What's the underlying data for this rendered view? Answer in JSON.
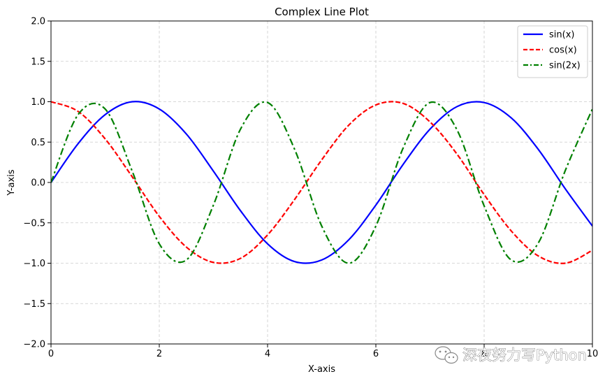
{
  "chart_data": {
    "type": "line",
    "title": "Complex Line Plot",
    "xlabel": "X-axis",
    "ylabel": "Y-axis",
    "xlim": [
      0,
      10
    ],
    "ylim": [
      -2.0,
      2.0
    ],
    "x_ticks": [
      "0",
      "2",
      "4",
      "6",
      "8",
      "10"
    ],
    "x_tick_values": [
      0,
      2,
      4,
      6,
      8,
      10
    ],
    "y_ticks": [
      "2.0",
      "1.5",
      "1.0",
      "0.5",
      "0.0",
      "−0.5",
      "−1.0",
      "−1.5",
      "−2.0"
    ],
    "y_tick_values": [
      2.0,
      1.5,
      1.0,
      0.5,
      0.0,
      -0.5,
      -1.0,
      -1.5,
      -2.0
    ],
    "grid": true,
    "legend_position": "top-right",
    "x": [
      0.0,
      0.5,
      1.0,
      1.5,
      2.0,
      2.5,
      3.0,
      3.5,
      4.0,
      4.5,
      5.0,
      5.5,
      6.0,
      6.5,
      7.0,
      7.5,
      8.0,
      8.5,
      9.0,
      9.5,
      10.0
    ],
    "series": [
      {
        "name": "sin(x)",
        "color": "#0000ff",
        "style": "solid",
        "values": [
          0.0,
          0.48,
          0.84,
          1.0,
          0.91,
          0.6,
          0.14,
          -0.35,
          -0.76,
          -0.98,
          -0.96,
          -0.71,
          -0.28,
          0.22,
          0.66,
          0.94,
          0.99,
          0.8,
          0.41,
          -0.08,
          -0.54
        ]
      },
      {
        "name": "cos(x)",
        "color": "#ff0000",
        "style": "dashed",
        "values": [
          1.0,
          0.88,
          0.54,
          0.07,
          -0.42,
          -0.8,
          -0.99,
          -0.94,
          -0.65,
          -0.21,
          0.28,
          0.71,
          0.96,
          0.98,
          0.75,
          0.35,
          -0.15,
          -0.6,
          -0.91,
          -1.0,
          -0.84
        ]
      },
      {
        "name": "sin(2x)",
        "color": "#008000",
        "style": "dashdot",
        "values": [
          0.0,
          0.84,
          0.91,
          0.14,
          -0.76,
          -0.96,
          -0.28,
          0.66,
          0.99,
          0.41,
          -0.54,
          -1.0,
          -0.54,
          0.42,
          0.99,
          0.65,
          -0.29,
          -0.96,
          -0.75,
          0.15,
          0.91
        ]
      }
    ]
  },
  "watermark": {
    "text": "深夜努力写Python",
    "icon": "wechat-icon"
  }
}
